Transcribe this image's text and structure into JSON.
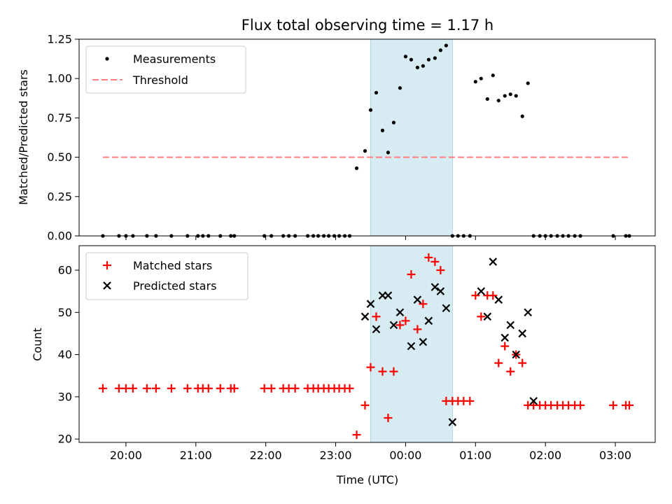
{
  "title": "Flux total observing time = 1.17 h",
  "x_axis": {
    "label": "Time (UTC)",
    "ticks": [
      {
        "label": "20:00",
        "t": 20.0
      },
      {
        "label": "21:00",
        "t": 21.0
      },
      {
        "label": "22:00",
        "t": 22.0
      },
      {
        "label": "23:00",
        "t": 23.0
      },
      {
        "label": "00:00",
        "t": 24.0
      },
      {
        "label": "01:00",
        "t": 25.0
      },
      {
        "label": "02:00",
        "t": 26.0
      },
      {
        "label": "03:00",
        "t": 27.0
      }
    ],
    "range_hours": [
      19.33,
      27.57
    ]
  },
  "colors": {
    "measurements": "#000000",
    "threshold": "#ff7f7f",
    "matched": "#ff0000",
    "predicted": "#000000",
    "span_fill": "#add8e6"
  },
  "chart_data": [
    {
      "type": "scatter",
      "panel": "top",
      "ylabel": "Matched/Predicted stars",
      "ylim": [
        0,
        1.25
      ],
      "yticks": [
        "0.00",
        "0.25",
        "0.50",
        "0.75",
        "1.00",
        "1.25"
      ],
      "legend": {
        "placement": "upper-left",
        "entries": [
          "Measurements",
          "Threshold"
        ]
      },
      "threshold": {
        "name": "Threshold",
        "value": 0.5,
        "x_from": 19.67,
        "x_to": 27.2
      },
      "highlight_span": {
        "from": 23.5,
        "to": 24.67
      },
      "series": [
        {
          "name": "Measurements",
          "x": [
            19.67,
            19.9,
            20.0,
            20.1,
            20.3,
            20.43,
            20.65,
            20.88,
            21.03,
            21.1,
            21.18,
            21.35,
            21.5,
            21.55,
            21.98,
            22.08,
            22.25,
            22.33,
            22.42,
            22.6,
            22.68,
            22.75,
            22.83,
            22.9,
            22.98,
            23.05,
            23.13,
            23.2,
            23.3,
            23.42,
            23.5,
            23.58,
            23.67,
            23.75,
            23.83,
            23.92,
            24.0,
            24.08,
            24.17,
            24.25,
            24.33,
            24.42,
            24.5,
            24.58,
            24.67,
            24.75,
            24.83,
            24.92,
            25.0,
            25.08,
            25.17,
            25.25,
            25.33,
            25.42,
            25.5,
            25.58,
            25.67,
            25.75,
            25.83,
            25.92,
            26.0,
            26.08,
            26.17,
            26.25,
            26.33,
            26.42,
            26.5,
            26.97,
            27.15,
            27.2
          ],
          "values": [
            0,
            0,
            0,
            0,
            0,
            0,
            0,
            0,
            0,
            0,
            0,
            0,
            0,
            0,
            0,
            0,
            0,
            0,
            0,
            0,
            0,
            0,
            0,
            0,
            0,
            0,
            0,
            0,
            0.43,
            0.54,
            0.8,
            0.91,
            0.67,
            0.53,
            0.72,
            0.94,
            1.14,
            1.12,
            1.07,
            1.08,
            1.12,
            1.13,
            1.18,
            1.21,
            0,
            0,
            0,
            0,
            0.98,
            1.0,
            0.87,
            1.02,
            0.86,
            0.89,
            0.9,
            0.89,
            0.76,
            0.97,
            0,
            0,
            0,
            0,
            0,
            0,
            0,
            0,
            0,
            0,
            0,
            0
          ]
        }
      ]
    },
    {
      "type": "scatter",
      "panel": "bottom",
      "ylabel": "Count",
      "xlabel": "Time (UTC)",
      "ylim": [
        19.2,
        65.8
      ],
      "yticks": [
        "20",
        "30",
        "40",
        "50",
        "60"
      ],
      "legend": {
        "placement": "upper-left",
        "entries": [
          "Matched stars",
          "Predicted stars"
        ]
      },
      "highlight_span": {
        "from": 23.5,
        "to": 24.67
      },
      "series": [
        {
          "name": "Matched stars",
          "marker": "plus",
          "x": [
            19.67,
            19.9,
            20.0,
            20.1,
            20.3,
            20.43,
            20.65,
            20.88,
            21.03,
            21.1,
            21.18,
            21.35,
            21.5,
            21.55,
            21.98,
            22.08,
            22.25,
            22.33,
            22.42,
            22.6,
            22.68,
            22.75,
            22.83,
            22.9,
            22.98,
            23.05,
            23.13,
            23.2,
            23.3,
            23.42,
            23.5,
            23.58,
            23.67,
            23.75,
            23.83,
            23.92,
            24.0,
            24.08,
            24.17,
            24.25,
            24.33,
            24.42,
            24.5,
            24.58,
            24.67,
            24.75,
            24.83,
            24.92,
            25.0,
            25.08,
            25.17,
            25.25,
            25.33,
            25.42,
            25.5,
            25.58,
            25.67,
            25.75,
            25.83,
            25.92,
            26.0,
            26.08,
            26.17,
            26.25,
            26.33,
            26.42,
            26.5,
            26.97,
            27.15,
            27.2
          ],
          "values": [
            32,
            32,
            32,
            32,
            32,
            32,
            32,
            32,
            32,
            32,
            32,
            32,
            32,
            32,
            32,
            32,
            32,
            32,
            32,
            32,
            32,
            32,
            32,
            32,
            32,
            32,
            32,
            32,
            21,
            28,
            37,
            49,
            36,
            25,
            36,
            47,
            48,
            59,
            46,
            52,
            63,
            62,
            60,
            29,
            29,
            29,
            29,
            29,
            54,
            49,
            54,
            54,
            38,
            42,
            36,
            40,
            38,
            28,
            28,
            28,
            28,
            28,
            28,
            28,
            28,
            28,
            28,
            28,
            28,
            28
          ]
        },
        {
          "name": "Predicted stars",
          "marker": "x",
          "x": [
            23.42,
            23.5,
            23.58,
            23.67,
            23.75,
            23.83,
            23.92,
            24.08,
            24.17,
            24.25,
            24.33,
            24.42,
            24.5,
            24.58,
            24.67,
            25.08,
            25.17,
            25.25,
            25.33,
            25.42,
            25.5,
            25.58,
            25.67,
            25.75,
            25.83
          ],
          "values": [
            49,
            52,
            46,
            54,
            54,
            47,
            50,
            42,
            53,
            43,
            48,
            56,
            55,
            51,
            24,
            55,
            49,
            62,
            53,
            44,
            47,
            40,
            45,
            50,
            29
          ]
        }
      ]
    }
  ]
}
